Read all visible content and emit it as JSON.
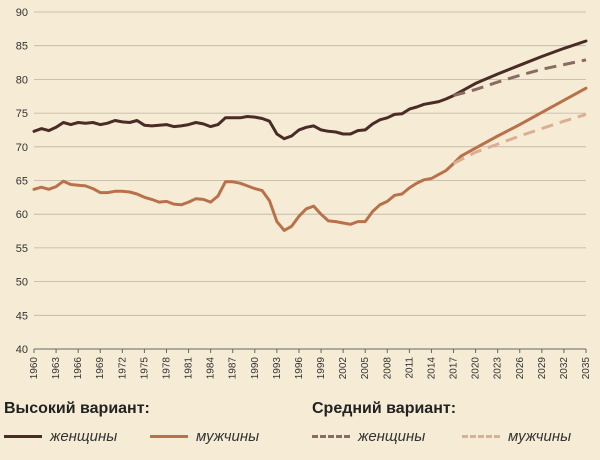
{
  "chart_data": {
    "type": "line",
    "title": "",
    "xlabel": "",
    "ylabel": "",
    "ylim": [
      40,
      90
    ],
    "xlim": [
      1960,
      2035
    ],
    "grid": true,
    "yticks": [
      "40",
      "45",
      "50",
      "55",
      "60",
      "65",
      "70",
      "75",
      "80",
      "85",
      "90"
    ],
    "xticks": [
      "1960",
      "1963",
      "1966",
      "1969",
      "1972",
      "1975",
      "1978",
      "1981",
      "1984",
      "1987",
      "1990",
      "1993",
      "1996",
      "1999",
      "2002",
      "2005",
      "2008",
      "2011",
      "2014",
      "2017",
      "2020",
      "2023",
      "2026",
      "2029",
      "2032",
      "2035"
    ],
    "series": [
      {
        "name": "женщины",
        "group": "Высокий вариант:",
        "color": "#4a2b26",
        "dashed": false,
        "points": [
          [
            1960,
            72.3
          ],
          [
            1961,
            72.7
          ],
          [
            1962,
            72.4
          ],
          [
            1963,
            72.9
          ],
          [
            1964,
            73.6
          ],
          [
            1965,
            73.3
          ],
          [
            1966,
            73.6
          ],
          [
            1967,
            73.5
          ],
          [
            1968,
            73.6
          ],
          [
            1969,
            73.3
          ],
          [
            1970,
            73.5
          ],
          [
            1971,
            73.9
          ],
          [
            1972,
            73.7
          ],
          [
            1973,
            73.6
          ],
          [
            1974,
            73.9
          ],
          [
            1975,
            73.2
          ],
          [
            1976,
            73.1
          ],
          [
            1977,
            73.2
          ],
          [
            1978,
            73.3
          ],
          [
            1979,
            73.0
          ],
          [
            1980,
            73.1
          ],
          [
            1981,
            73.3
          ],
          [
            1982,
            73.6
          ],
          [
            1983,
            73.4
          ],
          [
            1984,
            73.0
          ],
          [
            1985,
            73.3
          ],
          [
            1986,
            74.3
          ],
          [
            1987,
            74.3
          ],
          [
            1988,
            74.3
          ],
          [
            1989,
            74.5
          ],
          [
            1990,
            74.4
          ],
          [
            1991,
            74.2
          ],
          [
            1992,
            73.8
          ],
          [
            1993,
            71.9
          ],
          [
            1994,
            71.2
          ],
          [
            1995,
            71.6
          ],
          [
            1996,
            72.5
          ],
          [
            1997,
            72.9
          ],
          [
            1998,
            73.1
          ],
          [
            1999,
            72.5
          ],
          [
            2000,
            72.3
          ],
          [
            2001,
            72.2
          ],
          [
            2002,
            71.9
          ],
          [
            2003,
            71.9
          ],
          [
            2004,
            72.4
          ],
          [
            2005,
            72.5
          ],
          [
            2006,
            73.4
          ],
          [
            2007,
            74.0
          ],
          [
            2008,
            74.3
          ],
          [
            2009,
            74.8
          ],
          [
            2010,
            74.9
          ],
          [
            2011,
            75.6
          ],
          [
            2012,
            75.9
          ],
          [
            2013,
            76.3
          ],
          [
            2014,
            76.5
          ],
          [
            2015,
            76.7
          ],
          [
            2016,
            77.1
          ],
          [
            2017,
            77.6
          ],
          [
            2020,
            79.4
          ],
          [
            2023,
            80.8
          ],
          [
            2026,
            82.1
          ],
          [
            2029,
            83.4
          ],
          [
            2032,
            84.6
          ],
          [
            2035,
            85.7
          ]
        ]
      },
      {
        "name": "мужчины",
        "group": "Высокий вариант:",
        "color": "#b8714a",
        "dashed": false,
        "points": [
          [
            1960,
            63.7
          ],
          [
            1961,
            64.0
          ],
          [
            1962,
            63.7
          ],
          [
            1963,
            64.1
          ],
          [
            1964,
            64.9
          ],
          [
            1965,
            64.4
          ],
          [
            1966,
            64.3
          ],
          [
            1967,
            64.2
          ],
          [
            1968,
            63.8
          ],
          [
            1969,
            63.2
          ],
          [
            1970,
            63.2
          ],
          [
            1971,
            63.4
          ],
          [
            1972,
            63.4
          ],
          [
            1973,
            63.3
          ],
          [
            1974,
            63.0
          ],
          [
            1975,
            62.5
          ],
          [
            1976,
            62.2
          ],
          [
            1977,
            61.8
          ],
          [
            1978,
            61.9
          ],
          [
            1979,
            61.5
          ],
          [
            1980,
            61.4
          ],
          [
            1981,
            61.8
          ],
          [
            1982,
            62.3
          ],
          [
            1983,
            62.2
          ],
          [
            1984,
            61.8
          ],
          [
            1985,
            62.7
          ],
          [
            1986,
            64.8
          ],
          [
            1987,
            64.8
          ],
          [
            1988,
            64.6
          ],
          [
            1989,
            64.2
          ],
          [
            1990,
            63.8
          ],
          [
            1991,
            63.5
          ],
          [
            1992,
            62.0
          ],
          [
            1993,
            58.9
          ],
          [
            1994,
            57.6
          ],
          [
            1995,
            58.2
          ],
          [
            1996,
            59.7
          ],
          [
            1997,
            60.8
          ],
          [
            1998,
            61.2
          ],
          [
            1999,
            60.0
          ],
          [
            2000,
            59.0
          ],
          [
            2001,
            58.9
          ],
          [
            2002,
            58.7
          ],
          [
            2003,
            58.5
          ],
          [
            2004,
            58.9
          ],
          [
            2005,
            58.9
          ],
          [
            2006,
            60.4
          ],
          [
            2007,
            61.4
          ],
          [
            2008,
            61.9
          ],
          [
            2009,
            62.8
          ],
          [
            2010,
            63.0
          ],
          [
            2011,
            63.9
          ],
          [
            2012,
            64.6
          ],
          [
            2013,
            65.1
          ],
          [
            2014,
            65.3
          ],
          [
            2015,
            65.9
          ],
          [
            2016,
            66.5
          ],
          [
            2017,
            67.5
          ],
          [
            2018,
            68.6
          ],
          [
            2020,
            69.8
          ],
          [
            2023,
            71.6
          ],
          [
            2026,
            73.3
          ],
          [
            2029,
            75.1
          ],
          [
            2032,
            76.9
          ],
          [
            2035,
            78.7
          ]
        ]
      },
      {
        "name": "женщины",
        "group": "Средний вариант:",
        "color": "#8a6b63",
        "dashed": true,
        "points": [
          [
            2017,
            77.6
          ],
          [
            2020,
            78.5
          ],
          [
            2023,
            79.6
          ],
          [
            2026,
            80.6
          ],
          [
            2029,
            81.5
          ],
          [
            2032,
            82.2
          ],
          [
            2035,
            82.9
          ]
        ]
      },
      {
        "name": "мужчины",
        "group": "Средний вариант:",
        "color": "#dcae93",
        "dashed": true,
        "points": [
          [
            2017,
            67.5
          ],
          [
            2020,
            69.2
          ],
          [
            2023,
            70.4
          ],
          [
            2026,
            71.6
          ],
          [
            2029,
            72.7
          ],
          [
            2032,
            73.8
          ],
          [
            2035,
            74.8
          ]
        ]
      }
    ]
  },
  "legend": {
    "high_title": "Высокий вариант:",
    "medium_title": "Средний вариант:",
    "high_women": "женщины",
    "high_men": "мужчины",
    "medium_women": "женщины",
    "medium_men": "мужчины"
  }
}
